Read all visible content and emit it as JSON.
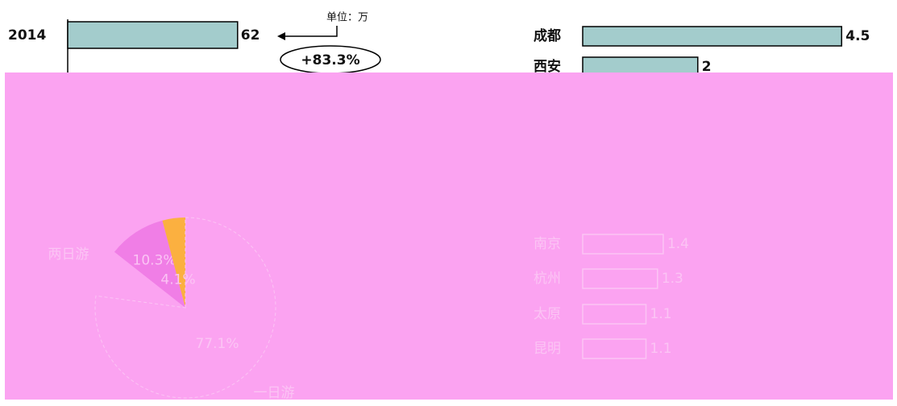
{
  "chart_data": [
    {
      "type": "hbar",
      "unit": "单位：万",
      "annotation": "+83.3%",
      "categories": [
        "2014"
      ],
      "values": [
        62
      ],
      "color": "#a3cccc",
      "xlim": [
        0,
        70
      ]
    },
    {
      "type": "pie",
      "categories": [
        "两日游",
        null,
        "一日游"
      ],
      "values": [
        10.3,
        4.1,
        77.1
      ],
      "value_labels": [
        "10.3%",
        "4.1%",
        "77.1%"
      ],
      "colors": [
        "#f07ee6",
        "#fbb040",
        "#fbb0f3"
      ]
    },
    {
      "type": "hbar",
      "categories": [
        "成都",
        "西安",
        "南京",
        "杭州",
        "太原",
        "昆明"
      ],
      "values": [
        4.5,
        2.0,
        1.4,
        1.3,
        1.1,
        1.1
      ],
      "color": "#a3cccc",
      "xlim": [
        0,
        5
      ]
    }
  ]
}
